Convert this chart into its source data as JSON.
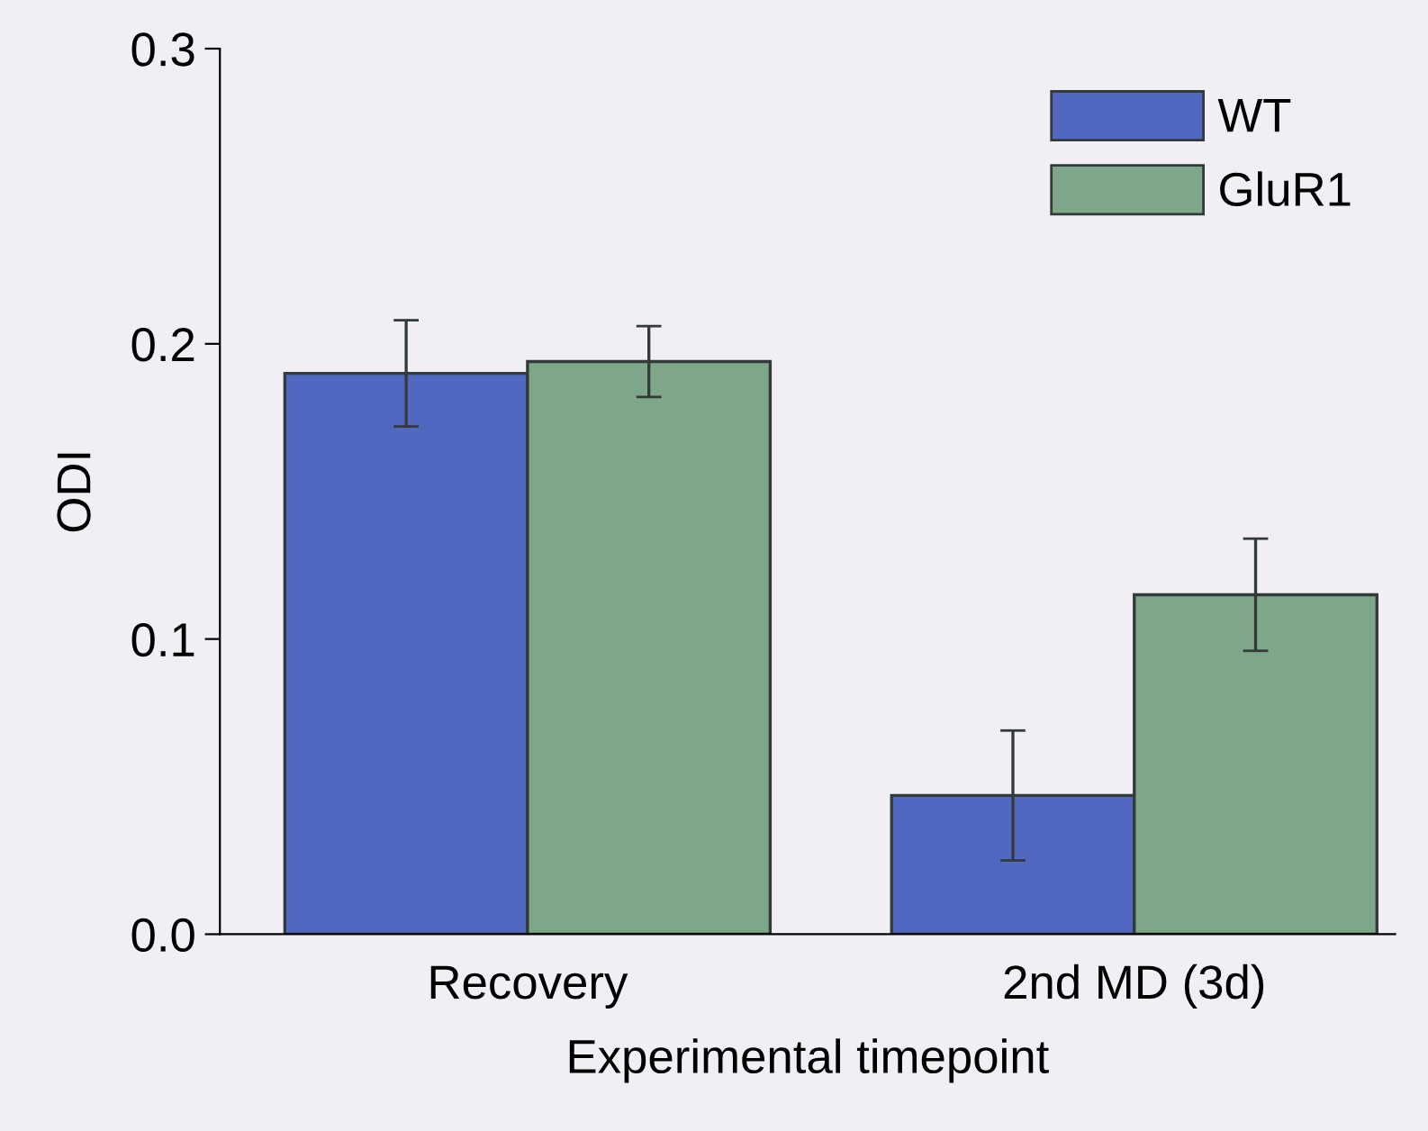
{
  "chart_data": {
    "type": "bar",
    "xlabel": "Experimental timepoint",
    "ylabel": "ODI",
    "categories": [
      "Recovery",
      "2nd MD (3d)"
    ],
    "series": [
      {
        "name": "WT",
        "color": "#5068c0",
        "values": [
          0.19,
          0.047
        ],
        "errors": [
          0.018,
          0.022
        ]
      },
      {
        "name": "GluR1",
        "color": "#7ea688",
        "values": [
          0.194,
          0.115
        ],
        "errors": [
          0.012,
          0.019
        ]
      }
    ],
    "ylim": [
      0,
      0.3
    ],
    "yticks": [
      {
        "value": 0,
        "label": "0.0"
      },
      {
        "value": 0.1,
        "label": "0.1"
      },
      {
        "value": 0.2,
        "label": "0.2"
      },
      {
        "value": 0.3,
        "label": "0.3"
      }
    ],
    "grid": false,
    "legend": "top right"
  }
}
